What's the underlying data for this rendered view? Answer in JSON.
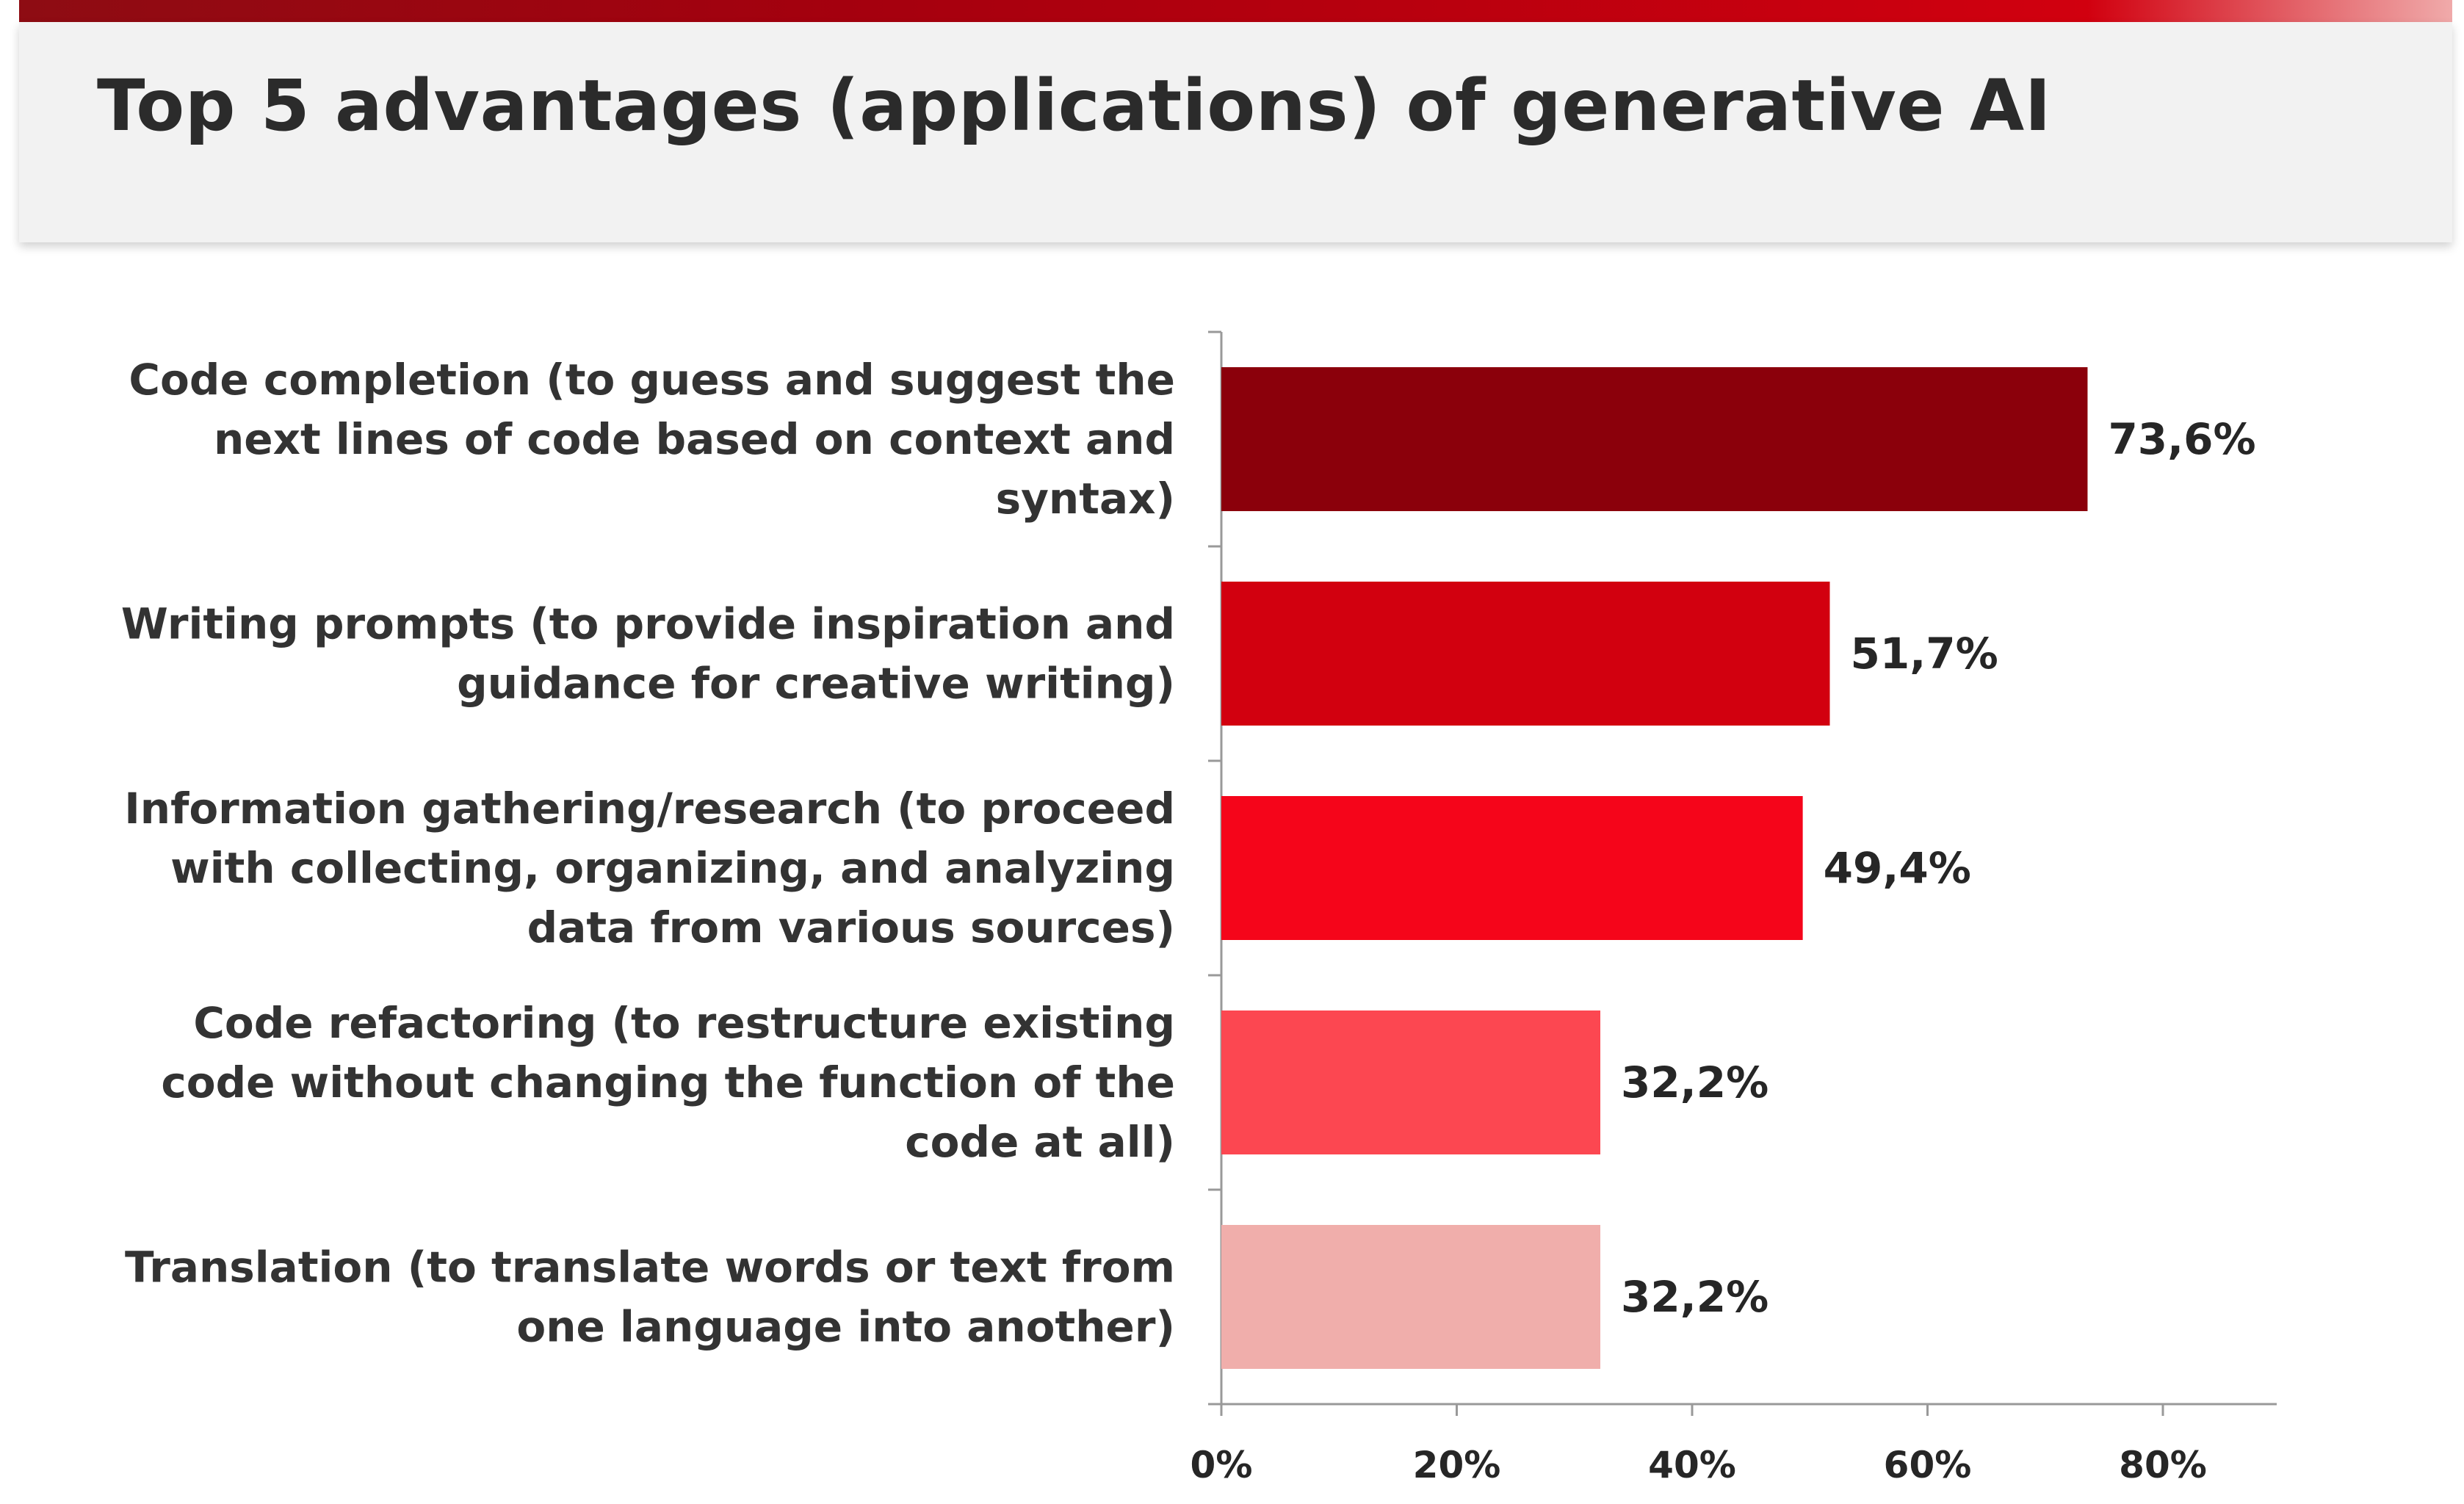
{
  "header": {
    "title": "Top 5 advantages (applications) of generative AI"
  },
  "colors": {
    "header_bar": "#a5000e",
    "header_bg": "#f2f2f2",
    "axis": "#999999",
    "text": "#333333"
  },
  "chart_data": {
    "type": "bar",
    "orientation": "horizontal",
    "categories": [
      [
        "Code completion (to guess and suggest the",
        "next lines of code based on context and",
        "syntax)"
      ],
      [
        "Writing prompts (to provide inspiration and",
        "guidance for creative writing)"
      ],
      [
        "Information gathering/research (to proceed",
        "with collecting, organizing, and analyzing",
        "data from various sources)"
      ],
      [
        "Code refactoring (to restructure existing",
        "code without changing the function of the",
        "code at all)"
      ],
      [
        "Translation (to translate words or text from",
        "one language into another)"
      ]
    ],
    "values": [
      73.6,
      51.7,
      49.4,
      32.2,
      32.2
    ],
    "value_labels": [
      "73,6%",
      "51,7%",
      "49,4%",
      "32,2%",
      "32,2%"
    ],
    "bar_colors": [
      "#8b000b",
      "#d2000f",
      "#f5051a",
      "#fc4751",
      "#f0aeab"
    ],
    "xlim": [
      0,
      90
    ],
    "xticks": [
      0,
      20,
      40,
      60,
      80
    ],
    "xtick_labels": [
      "0%",
      "20%",
      "40%",
      "60%",
      "80%"
    ],
    "grid": false,
    "legend": "none"
  }
}
